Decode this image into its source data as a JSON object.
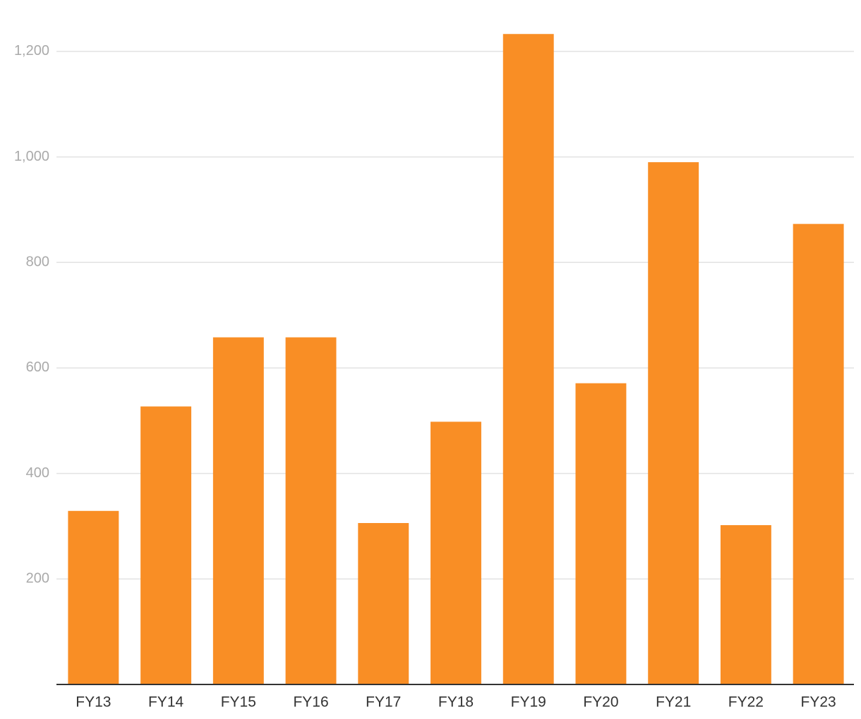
{
  "chart_data": {
    "type": "bar",
    "categories": [
      "FY13",
      "FY14",
      "FY15",
      "FY16",
      "FY17",
      "FY18",
      "FY19",
      "FY20",
      "FY21",
      "FY22",
      "FY23"
    ],
    "values": [
      329,
      527,
      658,
      658,
      306,
      498,
      1233,
      571,
      990,
      302,
      873
    ],
    "color": "#f98e25",
    "ylim": [
      0,
      1240
    ],
    "yticks": [
      200,
      400,
      600,
      800,
      {
        "value": 1000,
        "label": "1,000"
      },
      {
        "value": 1200,
        "label": "1,200"
      }
    ],
    "grid": true
  }
}
